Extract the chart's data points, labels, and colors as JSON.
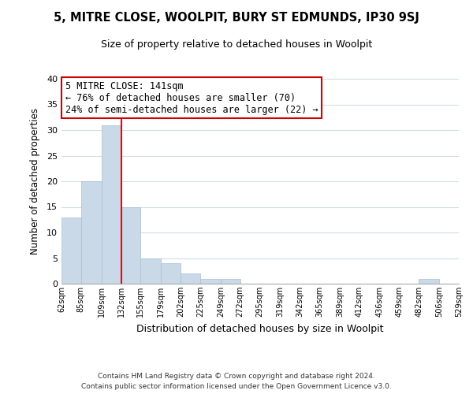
{
  "title": "5, MITRE CLOSE, WOOLPIT, BURY ST EDMUNDS, IP30 9SJ",
  "subtitle": "Size of property relative to detached houses in Woolpit",
  "xlabel": "Distribution of detached houses by size in Woolpit",
  "ylabel": "Number of detached properties",
  "footer_line1": "Contains HM Land Registry data © Crown copyright and database right 2024.",
  "footer_line2": "Contains public sector information licensed under the Open Government Licence v3.0.",
  "bin_edges": [
    62,
    85,
    109,
    132,
    155,
    179,
    202,
    225,
    249,
    272,
    295,
    319,
    342,
    365,
    389,
    412,
    436,
    459,
    482,
    506,
    529
  ],
  "bar_heights": [
    13,
    20,
    31,
    15,
    5,
    4,
    2,
    1,
    1,
    0,
    0,
    0,
    0,
    0,
    0,
    0,
    0,
    0,
    1,
    0
  ],
  "bar_color": "#c9d9e8",
  "bar_edgecolor": "#a8bfcf",
  "red_line_x": 132,
  "ylim": [
    0,
    40
  ],
  "yticks": [
    0,
    5,
    10,
    15,
    20,
    25,
    30,
    35,
    40
  ],
  "annotation_title": "5 MITRE CLOSE: 141sqm",
  "annotation_line1": "← 76% of detached houses are smaller (70)",
  "annotation_line2": "24% of semi-detached houses are larger (22) →",
  "annotation_box_color": "#ffffff",
  "annotation_box_edgecolor": "#cc0000",
  "background_color": "#ffffff",
  "grid_color": "#d0dce8"
}
